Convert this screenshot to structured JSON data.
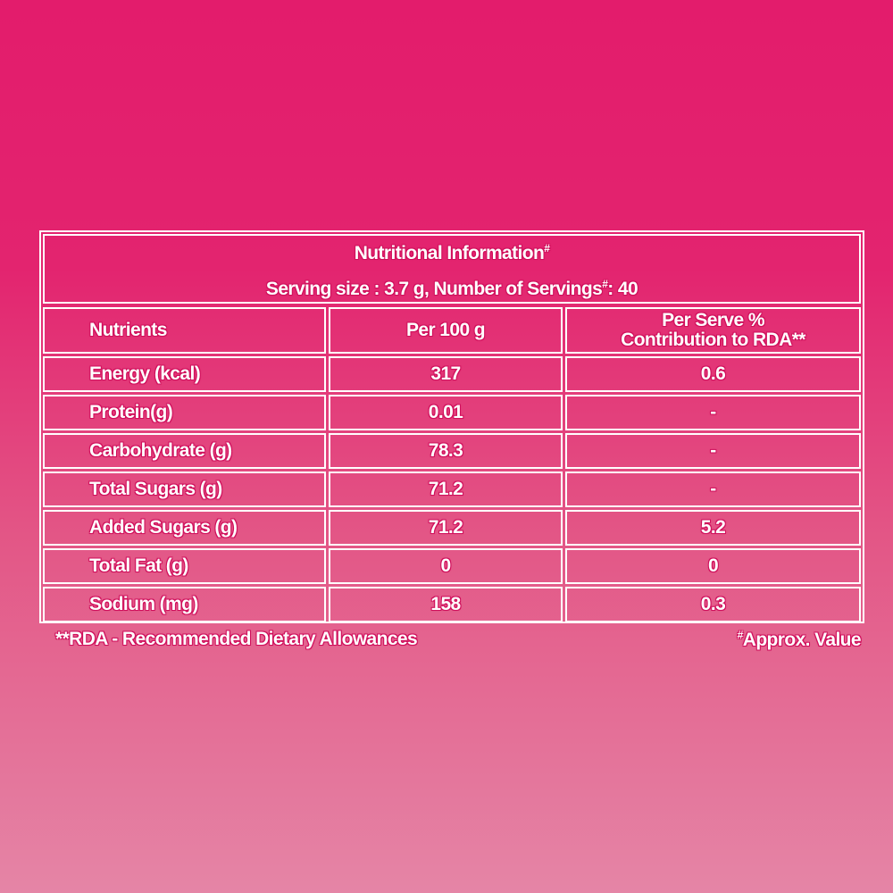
{
  "title": {
    "heading": "Nutritional Information",
    "heading_mark": "#",
    "serving_prefix": "Serving size : 3.7 g, Number of Servings",
    "serving_mark": "#",
    "serving_suffix": ": 40"
  },
  "columns": [
    "Nutrients",
    "Per 100 g",
    "Per Serve %\nContribution to RDA**"
  ],
  "rows": [
    {
      "nutrient": "Energy (kcal)",
      "per100": "317",
      "rda": "0.6"
    },
    {
      "nutrient": "Protein(g)",
      "per100": "0.01",
      "rda": "-"
    },
    {
      "nutrient": "Carbohydrate (g)",
      "per100": "78.3",
      "rda": "-"
    },
    {
      "nutrient": "Total Sugars (g)",
      "per100": "71.2",
      "rda": "-"
    },
    {
      "nutrient": "Added Sugars (g)",
      "per100": "71.2",
      "rda": "5.2"
    },
    {
      "nutrient": "Total Fat (g)",
      "per100": "0",
      "rda": "0"
    },
    {
      "nutrient": "Sodium (mg)",
      "per100": "158",
      "rda": "0.3"
    }
  ],
  "footnotes": {
    "rda": "**RDA - Recommended Dietary Allowances",
    "approx_mark": "#",
    "approx": "Approx. Value"
  },
  "colors": {
    "background_top": "#e31c6c",
    "background_bottom": "#e585a6",
    "text": "#ffffff"
  }
}
